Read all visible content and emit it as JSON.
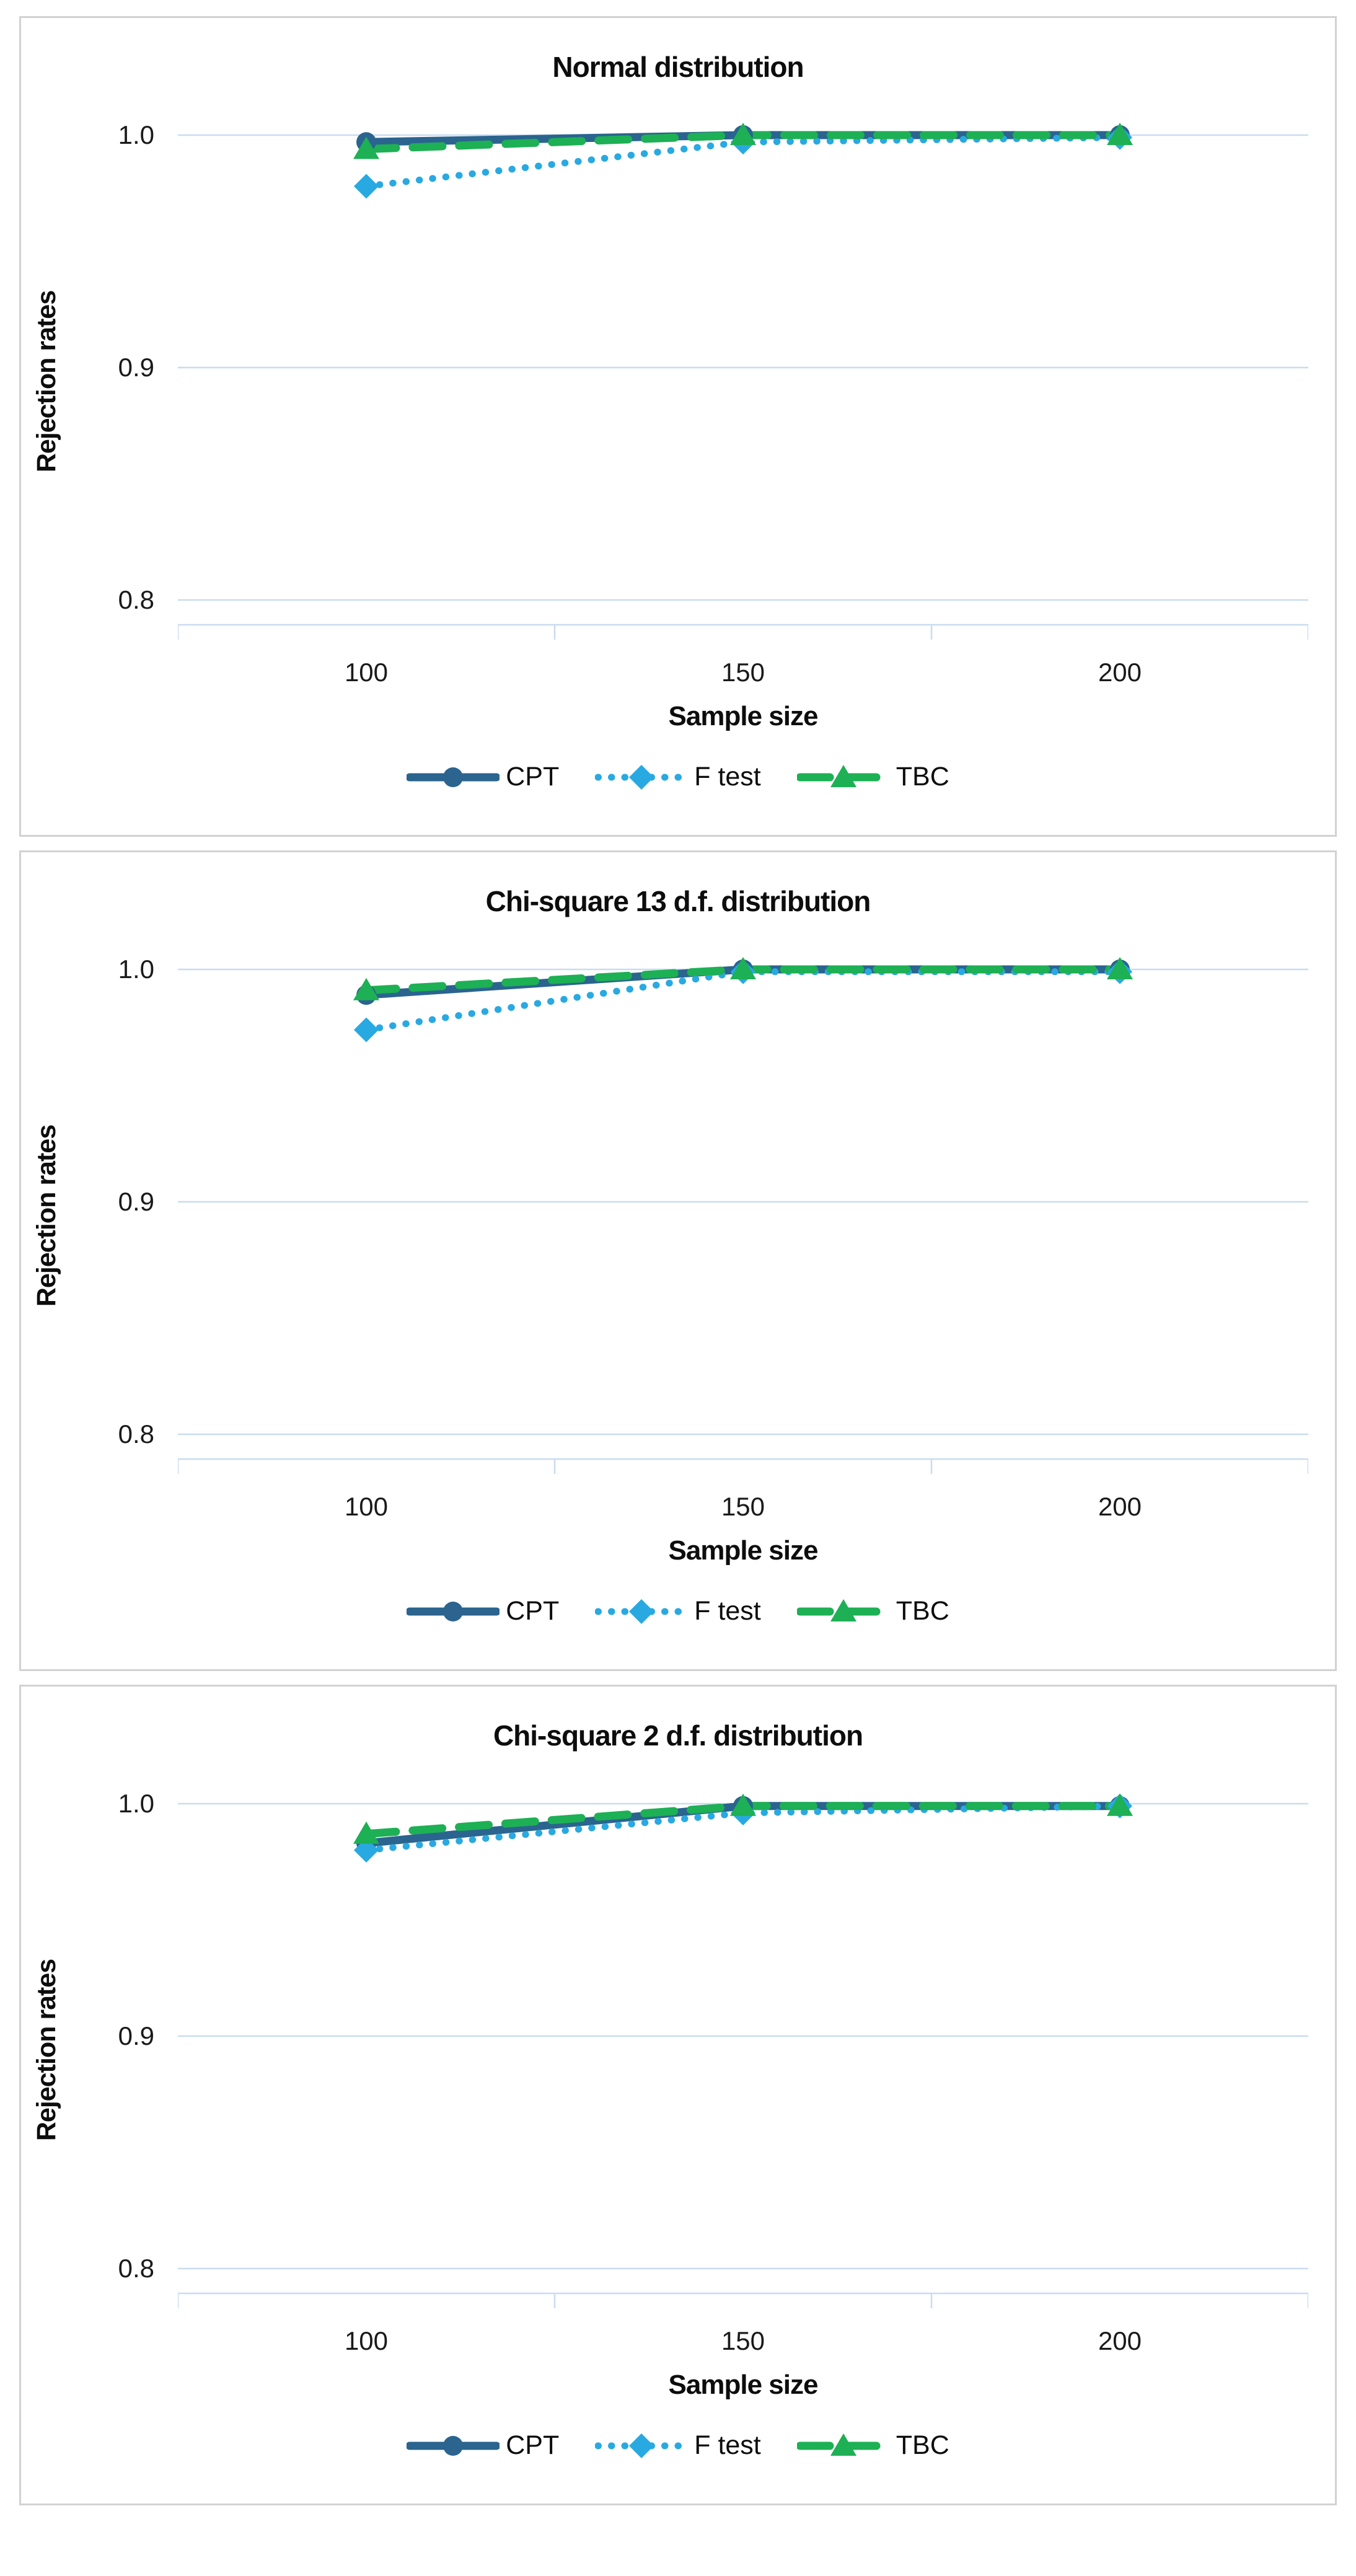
{
  "page": {
    "background": "#FFFFFF",
    "panel_border_color": "#D2D2D2",
    "grid_color": "#C9DCF0",
    "axis_color": "#C9DCF0",
    "text_color": "#111111"
  },
  "chart_data": [
    {
      "type": "line",
      "title": "Normal distribution",
      "xlabel": "Sample size",
      "ylabel": "Rejection rates",
      "categories": [
        "100",
        "150",
        "200"
      ],
      "x_values": [
        100,
        150,
        200
      ],
      "ytick_labels": [
        "1.0",
        "0.9",
        "0.8"
      ],
      "ytick_values": [
        1.0,
        0.9,
        0.8
      ],
      "ylim": [
        0.78,
        1.007
      ],
      "grid": true,
      "legend_position": "bottom",
      "series": [
        {
          "name": "CPT",
          "color": "#2A648F",
          "line_style": "solid",
          "marker": "circle",
          "values": [
            0.997,
            1.0,
            1.0
          ]
        },
        {
          "name": "F test",
          "color": "#29A9E1",
          "line_style": "dotted",
          "marker": "diamond",
          "values": [
            0.978,
            0.997,
            0.999
          ]
        },
        {
          "name": "TBC",
          "color": "#1DB054",
          "line_style": "dashed",
          "marker": "triangle",
          "values": [
            0.994,
            1.0,
            1.0
          ]
        }
      ]
    },
    {
      "type": "line",
      "title": "Chi-square 13 d.f. distribution",
      "xlabel": "Sample size",
      "ylabel": "Rejection rates",
      "categories": [
        "100",
        "150",
        "200"
      ],
      "x_values": [
        100,
        150,
        200
      ],
      "ytick_labels": [
        "1.0",
        "0.9",
        "0.8"
      ],
      "ytick_values": [
        1.0,
        0.9,
        0.8
      ],
      "ylim": [
        0.78,
        1.007
      ],
      "grid": true,
      "legend_position": "bottom",
      "series": [
        {
          "name": "CPT",
          "color": "#2A648F",
          "line_style": "solid",
          "marker": "circle",
          "values": [
            0.989,
            1.0,
            1.0
          ]
        },
        {
          "name": "F test",
          "color": "#29A9E1",
          "line_style": "dotted",
          "marker": "diamond",
          "values": [
            0.974,
            0.999,
            0.999
          ]
        },
        {
          "name": "TBC",
          "color": "#1DB054",
          "line_style": "dashed",
          "marker": "triangle",
          "values": [
            0.991,
            1.0,
            1.0
          ]
        }
      ]
    },
    {
      "type": "line",
      "title": "Chi-square 2 d.f. distribution",
      "xlabel": "Sample size",
      "ylabel": "Rejection rates",
      "categories": [
        "100",
        "150",
        "200"
      ],
      "x_values": [
        100,
        150,
        200
      ],
      "ytick_labels": [
        "1.0",
        "0.9",
        "0.8"
      ],
      "ytick_values": [
        1.0,
        0.9,
        0.8
      ],
      "ylim": [
        0.78,
        1.007
      ],
      "grid": true,
      "legend_position": "bottom",
      "series": [
        {
          "name": "CPT",
          "color": "#2A648F",
          "line_style": "solid",
          "marker": "circle",
          "values": [
            0.983,
            0.999,
            0.999
          ]
        },
        {
          "name": "F test",
          "color": "#29A9E1",
          "line_style": "dotted",
          "marker": "diamond",
          "values": [
            0.98,
            0.996,
            0.999
          ]
        },
        {
          "name": "TBC",
          "color": "#1DB054",
          "line_style": "dashed",
          "marker": "triangle",
          "values": [
            0.987,
            0.999,
            0.999
          ]
        }
      ]
    }
  ]
}
